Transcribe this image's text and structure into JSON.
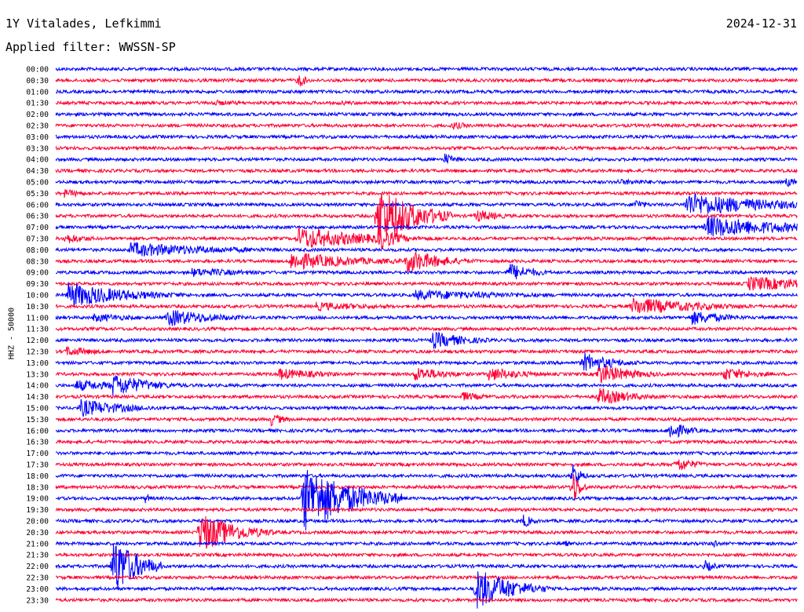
{
  "header": {
    "station": "1Y Vitalades, Lefkimmi",
    "date": "2024-12-31",
    "filter": "Applied filter: WWSSN-SP"
  },
  "chart_data": {
    "type": "line",
    "title": "1Y Vitalades, Lefkimmi",
    "ylabel": "HHZ - 50000",
    "colors": [
      "#0000ff",
      "#ff0033"
    ],
    "row_labels": [
      "00:00",
      "00:30",
      "01:00",
      "01:30",
      "02:00",
      "02:30",
      "03:00",
      "03:30",
      "04:00",
      "04:30",
      "05:00",
      "05:30",
      "06:00",
      "06:30",
      "07:00",
      "07:30",
      "08:00",
      "08:30",
      "09:00",
      "09:30",
      "10:00",
      "10:30",
      "11:00",
      "11:30",
      "12:00",
      "12:30",
      "13:00",
      "13:30",
      "14:00",
      "14:30",
      "15:00",
      "15:30",
      "16:00",
      "16:30",
      "17:00",
      "17:30",
      "18:00",
      "18:30",
      "19:00",
      "19:30",
      "20:00",
      "20:30",
      "21:00",
      "21:30",
      "22:00",
      "22:30",
      "23:00",
      "23:30"
    ],
    "trace_duration_minutes": 30,
    "events": [
      {
        "row": "00:30",
        "minute": 9.8,
        "amplitude": 12,
        "duration_minutes": 0.3
      },
      {
        "row": "01:30",
        "minute": 6.3,
        "amplitude": 4,
        "duration_minutes": 2
      },
      {
        "row": "01:30",
        "minute": 11.5,
        "amplitude": 3,
        "duration_minutes": 2
      },
      {
        "row": "02:30",
        "minute": 16.0,
        "amplitude": 6,
        "duration_minutes": 0.8
      },
      {
        "row": "04:00",
        "minute": 15.7,
        "amplitude": 9,
        "duration_minutes": 0.5
      },
      {
        "row": "05:00",
        "minute": 22.7,
        "amplitude": 4,
        "duration_minutes": 3
      },
      {
        "row": "05:00",
        "minute": 29.5,
        "amplitude": 7,
        "duration_minutes": 0.6
      },
      {
        "row": "05:30",
        "minute": 0.3,
        "amplitude": 6,
        "duration_minutes": 1
      },
      {
        "row": "06:00",
        "minute": 23.4,
        "amplitude": 8,
        "duration_minutes": 0.5
      },
      {
        "row": "06:00",
        "minute": 25.5,
        "amplitude": 16,
        "duration_minutes": 3.5
      },
      {
        "row": "06:30",
        "minute": 13.0,
        "amplitude": 42,
        "duration_minutes": 1.5
      },
      {
        "row": "06:30",
        "minute": 17.0,
        "amplitude": 9,
        "duration_minutes": 1
      },
      {
        "row": "07:00",
        "minute": 26.3,
        "amplitude": 15,
        "duration_minutes": 3.5
      },
      {
        "row": "07:30",
        "minute": 0.3,
        "amplitude": 8,
        "duration_minutes": 1
      },
      {
        "row": "07:30",
        "minute": 9.8,
        "amplitude": 15,
        "duration_minutes": 3
      },
      {
        "row": "07:30",
        "minute": 13.0,
        "amplitude": 18,
        "duration_minutes": 0.8
      },
      {
        "row": "08:00",
        "minute": 3.0,
        "amplitude": 10,
        "duration_minutes": 4
      },
      {
        "row": "08:30",
        "minute": 9.5,
        "amplitude": 12,
        "duration_minutes": 3
      },
      {
        "row": "08:30",
        "minute": 14.2,
        "amplitude": 16,
        "duration_minutes": 1.5
      },
      {
        "row": "09:00",
        "minute": 5.5,
        "amplitude": 6,
        "duration_minutes": 3
      },
      {
        "row": "09:00",
        "minute": 18.3,
        "amplitude": 13,
        "duration_minutes": 1
      },
      {
        "row": "09:30",
        "minute": 28.0,
        "amplitude": 10,
        "duration_minutes": 3.5
      },
      {
        "row": "10:00",
        "minute": 0.5,
        "amplitude": 17,
        "duration_minutes": 2.5
      },
      {
        "row": "10:00",
        "minute": 14.5,
        "amplitude": 7,
        "duration_minutes": 5
      },
      {
        "row": "10:30",
        "minute": 10.5,
        "amplitude": 6,
        "duration_minutes": 3
      },
      {
        "row": "10:30",
        "minute": 23.3,
        "amplitude": 12,
        "duration_minutes": 3
      },
      {
        "row": "11:00",
        "minute": 1.5,
        "amplitude": 6,
        "duration_minutes": 2
      },
      {
        "row": "11:00",
        "minute": 4.5,
        "amplitude": 12,
        "duration_minutes": 2
      },
      {
        "row": "11:00",
        "minute": 25.7,
        "amplitude": 10,
        "duration_minutes": 1.5
      },
      {
        "row": "12:00",
        "minute": 15.2,
        "amplitude": 12,
        "duration_minutes": 1.5
      },
      {
        "row": "12:30",
        "minute": 0.4,
        "amplitude": 7,
        "duration_minutes": 1.5
      },
      {
        "row": "13:00",
        "minute": 21.3,
        "amplitude": 14,
        "duration_minutes": 1.3
      },
      {
        "row": "13:30",
        "minute": 9.0,
        "amplitude": 8,
        "duration_minutes": 2
      },
      {
        "row": "13:30",
        "minute": 14.5,
        "amplitude": 10,
        "duration_minutes": 1.5
      },
      {
        "row": "13:30",
        "minute": 17.5,
        "amplitude": 10,
        "duration_minutes": 1.5
      },
      {
        "row": "13:30",
        "minute": 21.9,
        "amplitude": 14,
        "duration_minutes": 1.5
      },
      {
        "row": "13:30",
        "minute": 27.0,
        "amplitude": 9,
        "duration_minutes": 1.5
      },
      {
        "row": "14:00",
        "minute": 0.8,
        "amplitude": 8,
        "duration_minutes": 2
      },
      {
        "row": "14:00",
        "minute": 2.3,
        "amplitude": 16,
        "duration_minutes": 1.5
      },
      {
        "row": "14:30",
        "minute": 16.4,
        "amplitude": 7,
        "duration_minutes": 1
      },
      {
        "row": "14:30",
        "minute": 21.9,
        "amplitude": 12,
        "duration_minutes": 1.5
      },
      {
        "row": "15:00",
        "minute": 1.0,
        "amplitude": 12,
        "duration_minutes": 2
      },
      {
        "row": "15:30",
        "minute": 8.7,
        "amplitude": 9,
        "duration_minutes": 0.6
      },
      {
        "row": "16:00",
        "minute": 24.8,
        "amplitude": 13,
        "duration_minutes": 0.8
      },
      {
        "row": "17:30",
        "minute": 25.1,
        "amplitude": 11,
        "duration_minutes": 0.8
      },
      {
        "row": "18:00",
        "minute": 20.9,
        "amplitude": 20,
        "duration_minutes": 0.3
      },
      {
        "row": "18:30",
        "minute": 20.9,
        "amplitude": 25,
        "duration_minutes": 0.3
      },
      {
        "row": "19:00",
        "minute": 10.0,
        "amplitude": 45,
        "duration_minutes": 2
      },
      {
        "row": "19:00",
        "minute": 3.6,
        "amplitude": 7,
        "duration_minutes": 0.3
      },
      {
        "row": "20:00",
        "minute": 18.9,
        "amplitude": 10,
        "duration_minutes": 0.4
      },
      {
        "row": "20:30",
        "minute": 5.8,
        "amplitude": 28,
        "duration_minutes": 1.5
      },
      {
        "row": "21:00",
        "minute": 20.5,
        "amplitude": 6,
        "duration_minutes": 0.3
      },
      {
        "row": "21:00",
        "minute": 26.6,
        "amplitude": 8,
        "duration_minutes": 0.2
      },
      {
        "row": "22:00",
        "minute": 2.3,
        "amplitude": 42,
        "duration_minutes": 1
      },
      {
        "row": "22:00",
        "minute": 26.2,
        "amplitude": 9,
        "duration_minutes": 0.5
      },
      {
        "row": "23:00",
        "minute": 17.0,
        "amplitude": 28,
        "duration_minutes": 1.5
      }
    ]
  }
}
